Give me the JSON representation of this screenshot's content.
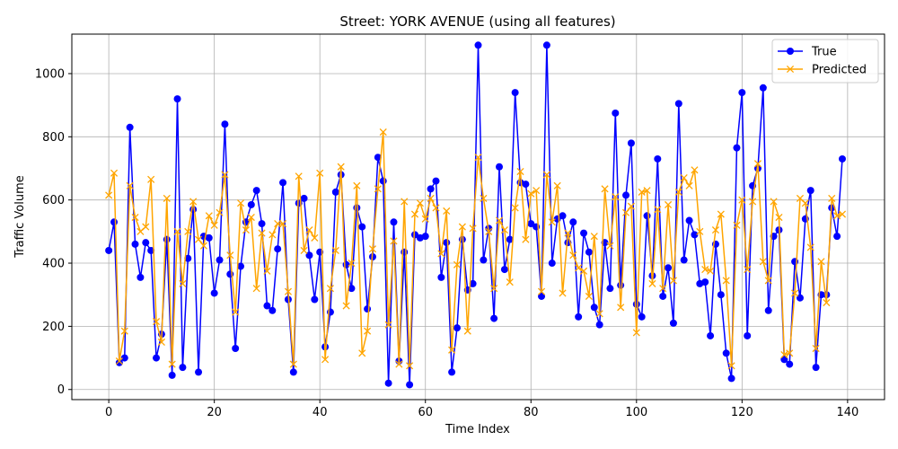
{
  "chart_data": {
    "type": "line",
    "title": "Street: YORK AVENUE (using all features)",
    "xlabel": "Time Index",
    "ylabel": "Traffic Volume",
    "xlim": [
      -7,
      147
    ],
    "ylim": [
      -32,
      1125
    ],
    "x_ticks": [
      0,
      20,
      40,
      60,
      80,
      100,
      120,
      140
    ],
    "y_ticks": [
      0,
      200,
      400,
      600,
      800,
      1000
    ],
    "grid": true,
    "legend_position": "top-right",
    "x": [
      0,
      1,
      2,
      3,
      4,
      5,
      6,
      7,
      8,
      9,
      10,
      11,
      12,
      13,
      14,
      15,
      16,
      17,
      18,
      19,
      20,
      21,
      22,
      23,
      24,
      25,
      26,
      27,
      28,
      29,
      30,
      31,
      32,
      33,
      34,
      35,
      36,
      37,
      38,
      39,
      40,
      41,
      42,
      43,
      44,
      45,
      46,
      47,
      48,
      49,
      50,
      51,
      52,
      53,
      54,
      55,
      56,
      57,
      58,
      59,
      60,
      61,
      62,
      63,
      64,
      65,
      66,
      67,
      68,
      69,
      70,
      71,
      72,
      73,
      74,
      75,
      76,
      77,
      78,
      79,
      80,
      81,
      82,
      83,
      84,
      85,
      86,
      87,
      88,
      89,
      90,
      91,
      92,
      93,
      94,
      95,
      96,
      97,
      98,
      99,
      100,
      101,
      102,
      103,
      104,
      105,
      106,
      107,
      108,
      109,
      110,
      111,
      112,
      113,
      114,
      115,
      116,
      117,
      118,
      119,
      120,
      121,
      122,
      123,
      124,
      125,
      126,
      127,
      128,
      129,
      130,
      131,
      132,
      133,
      134,
      135,
      136,
      137,
      138,
      139
    ],
    "series": [
      {
        "name": "True",
        "color": "#0000ff",
        "marker": "circle",
        "values": [
          440,
          530,
          85,
          100,
          830,
          460,
          355,
          465,
          440,
          100,
          175,
          475,
          45,
          920,
          70,
          415,
          570,
          55,
          485,
          480,
          305,
          410,
          840,
          365,
          130,
          390,
          530,
          585,
          630,
          525,
          265,
          250,
          445,
          655,
          285,
          55,
          590,
          605,
          425,
          285,
          435,
          135,
          245,
          625,
          680,
          395,
          320,
          575,
          515,
          255,
          420,
          735,
          660,
          20,
          530,
          90,
          435,
          15,
          490,
          480,
          485,
          635,
          660,
          355,
          465,
          55,
          195,
          475,
          315,
          335,
          1090,
          410,
          510,
          225,
          705,
          380,
          475,
          940,
          655,
          650,
          525,
          515,
          295,
          1090,
          400,
          540,
          550,
          465,
          530,
          230,
          495,
          435,
          260,
          205,
          465,
          320,
          875,
          330,
          615,
          780,
          270,
          230,
          550,
          360,
          730,
          295,
          385,
          210,
          905,
          410,
          535,
          490,
          335,
          340,
          170,
          460,
          300,
          115,
          35,
          765,
          940,
          170,
          645,
          700,
          955,
          250,
          485,
          505,
          95,
          80,
          405,
          290,
          540,
          630,
          70,
          300,
          300,
          575,
          485,
          730
        ]
      },
      {
        "name": "Predicted",
        "color": "#ffa500",
        "marker": "x",
        "values": [
          615,
          685,
          90,
          185,
          645,
          545,
          500,
          515,
          665,
          215,
          150,
          605,
          80,
          500,
          335,
          500,
          595,
          475,
          455,
          550,
          520,
          560,
          680,
          425,
          245,
          590,
          505,
          545,
          320,
          495,
          375,
          490,
          525,
          525,
          310,
          80,
          675,
          440,
          505,
          480,
          685,
          95,
          320,
          440,
          705,
          265,
          400,
          645,
          115,
          185,
          445,
          635,
          815,
          205,
          470,
          80,
          595,
          75,
          555,
          590,
          540,
          605,
          575,
          430,
          565,
          125,
          395,
          515,
          185,
          510,
          735,
          605,
          500,
          320,
          535,
          505,
          340,
          575,
          690,
          475,
          620,
          630,
          310,
          680,
          530,
          645,
          305,
          495,
          425,
          385,
          375,
          295,
          485,
          240,
          635,
          455,
          610,
          260,
          560,
          580,
          180,
          625,
          630,
          335,
          570,
          320,
          585,
          345,
          625,
          670,
          645,
          695,
          500,
          380,
          375,
          505,
          555,
          345,
          75,
          520,
          600,
          380,
          595,
          715,
          405,
          345,
          595,
          545,
          110,
          115,
          305,
          605,
          590,
          450,
          130,
          405,
          275,
          605,
          550,
          555
        ]
      }
    ]
  }
}
